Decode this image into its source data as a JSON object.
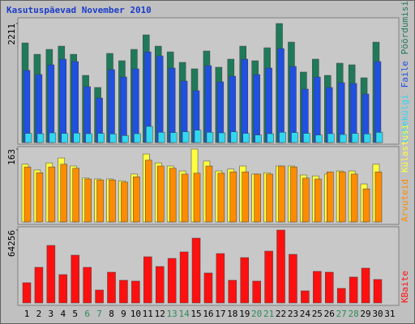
{
  "chart_data": {
    "type": "bar",
    "title": "Kasutuspäevad November 2010",
    "categories": [
      "1",
      "2",
      "3",
      "4",
      "5",
      "6",
      "7",
      "8",
      "9",
      "10",
      "11",
      "12",
      "13",
      "14",
      "15",
      "16",
      "17",
      "18",
      "19",
      "20",
      "21",
      "22",
      "23",
      "24",
      "25",
      "26",
      "27",
      "28",
      "29",
      "30",
      "31"
    ],
    "category_colors": [
      "#000000",
      "#000000",
      "#000000",
      "#000000",
      "#000000",
      "#2e8b57",
      "#2e8b57",
      "#000000",
      "#000000",
      "#000000",
      "#000000",
      "#000000",
      "#2e8b57",
      "#2e8b57",
      "#000000",
      "#000000",
      "#000000",
      "#000000",
      "#000000",
      "#2e8b57",
      "#2e8b57",
      "#000000",
      "#000000",
      "#000000",
      "#000000",
      "#000000",
      "#2e8b57",
      "#2e8b57",
      "#000000",
      "#000000",
      "#000000"
    ],
    "panels": [
      {
        "ylim": [
          0,
          2211
        ],
        "yticks": [
          2211
        ],
        "series": [
          {
            "name": "Pöördumisi",
            "color": "#1f7a5a",
            "values": [
              1850,
              1639,
              1730,
              1790,
              1639,
              1248,
              1023,
              1655,
              1519,
              1730,
              2000,
              1790,
              1684,
              1489,
              1369,
              1700,
              1399,
              1549,
              1790,
              1519,
              1760,
              2211,
              1865,
              1309,
              1549,
              1248,
              1474,
              1444,
              1203,
              1865,
              null
            ]
          },
          {
            "name": "Faile",
            "color": "#2050e0",
            "values": [
              1339,
              1263,
              1444,
              1549,
              1504,
              1038,
              827,
              1354,
              1218,
              1369,
              1684,
              1609,
              1384,
              1143,
              963,
              1429,
              1128,
              1233,
              1549,
              1263,
              1384,
              1745,
              1414,
              993,
              1218,
              1023,
              1113,
              1098,
              902,
              1504,
              null
            ]
          },
          {
            "name": "Lehekülgi",
            "color": "#30d8f0",
            "values": [
              170,
              165,
              180,
              170,
              175,
              165,
              170,
              160,
              130,
              165,
              300,
              190,
              185,
              200,
              230,
              190,
              180,
              200,
              170,
              140,
              165,
              190,
              185,
              170,
              140,
              165,
              150,
              170,
              160,
              190,
              null
            ]
          }
        ]
      },
      {
        "ylim": [
          0,
          163
        ],
        "yticks": [
          163
        ],
        "series": [
          {
            "name": "Külastusi",
            "color": "#ffff40",
            "values": [
              129,
              116,
              132,
              143,
              125,
              98,
              96,
              96,
              92,
              107,
              152,
              132,
              125,
              114,
              163,
              136,
              114,
              118,
              125,
              107,
              110,
              125,
              125,
              105,
              103,
              107,
              114,
              114,
              85,
              129,
              null
            ]
          },
          {
            "name": "Arvuteid",
            "color": "#ff8c00",
            "values": [
              123,
              110,
              123,
              129,
              120,
              96,
              94,
              94,
              89,
              101,
              138,
              125,
              120,
              107,
              109,
              125,
              109,
              112,
              112,
              107,
              107,
              125,
              123,
              98,
              96,
              112,
              112,
              107,
              74,
              112,
              null
            ]
          }
        ]
      },
      {
        "ylim": [
          0,
          64256
        ],
        "yticks": [
          64256
        ],
        "series": [
          {
            "name": "KBaite",
            "color": "#ff1010",
            "values": [
              17850,
              31420,
              50700,
              24990,
              42130,
              31420,
              11420,
              27130,
              19990,
              19280,
              40700,
              32130,
              39270,
              44980,
              57120,
              26420,
              43550,
              19990,
              39980,
              19280,
              45700,
              64256,
              42840,
              10710,
              27850,
              27130,
              12850,
              22850,
              30700,
              20710,
              null
            ]
          }
        ]
      }
    ]
  }
}
